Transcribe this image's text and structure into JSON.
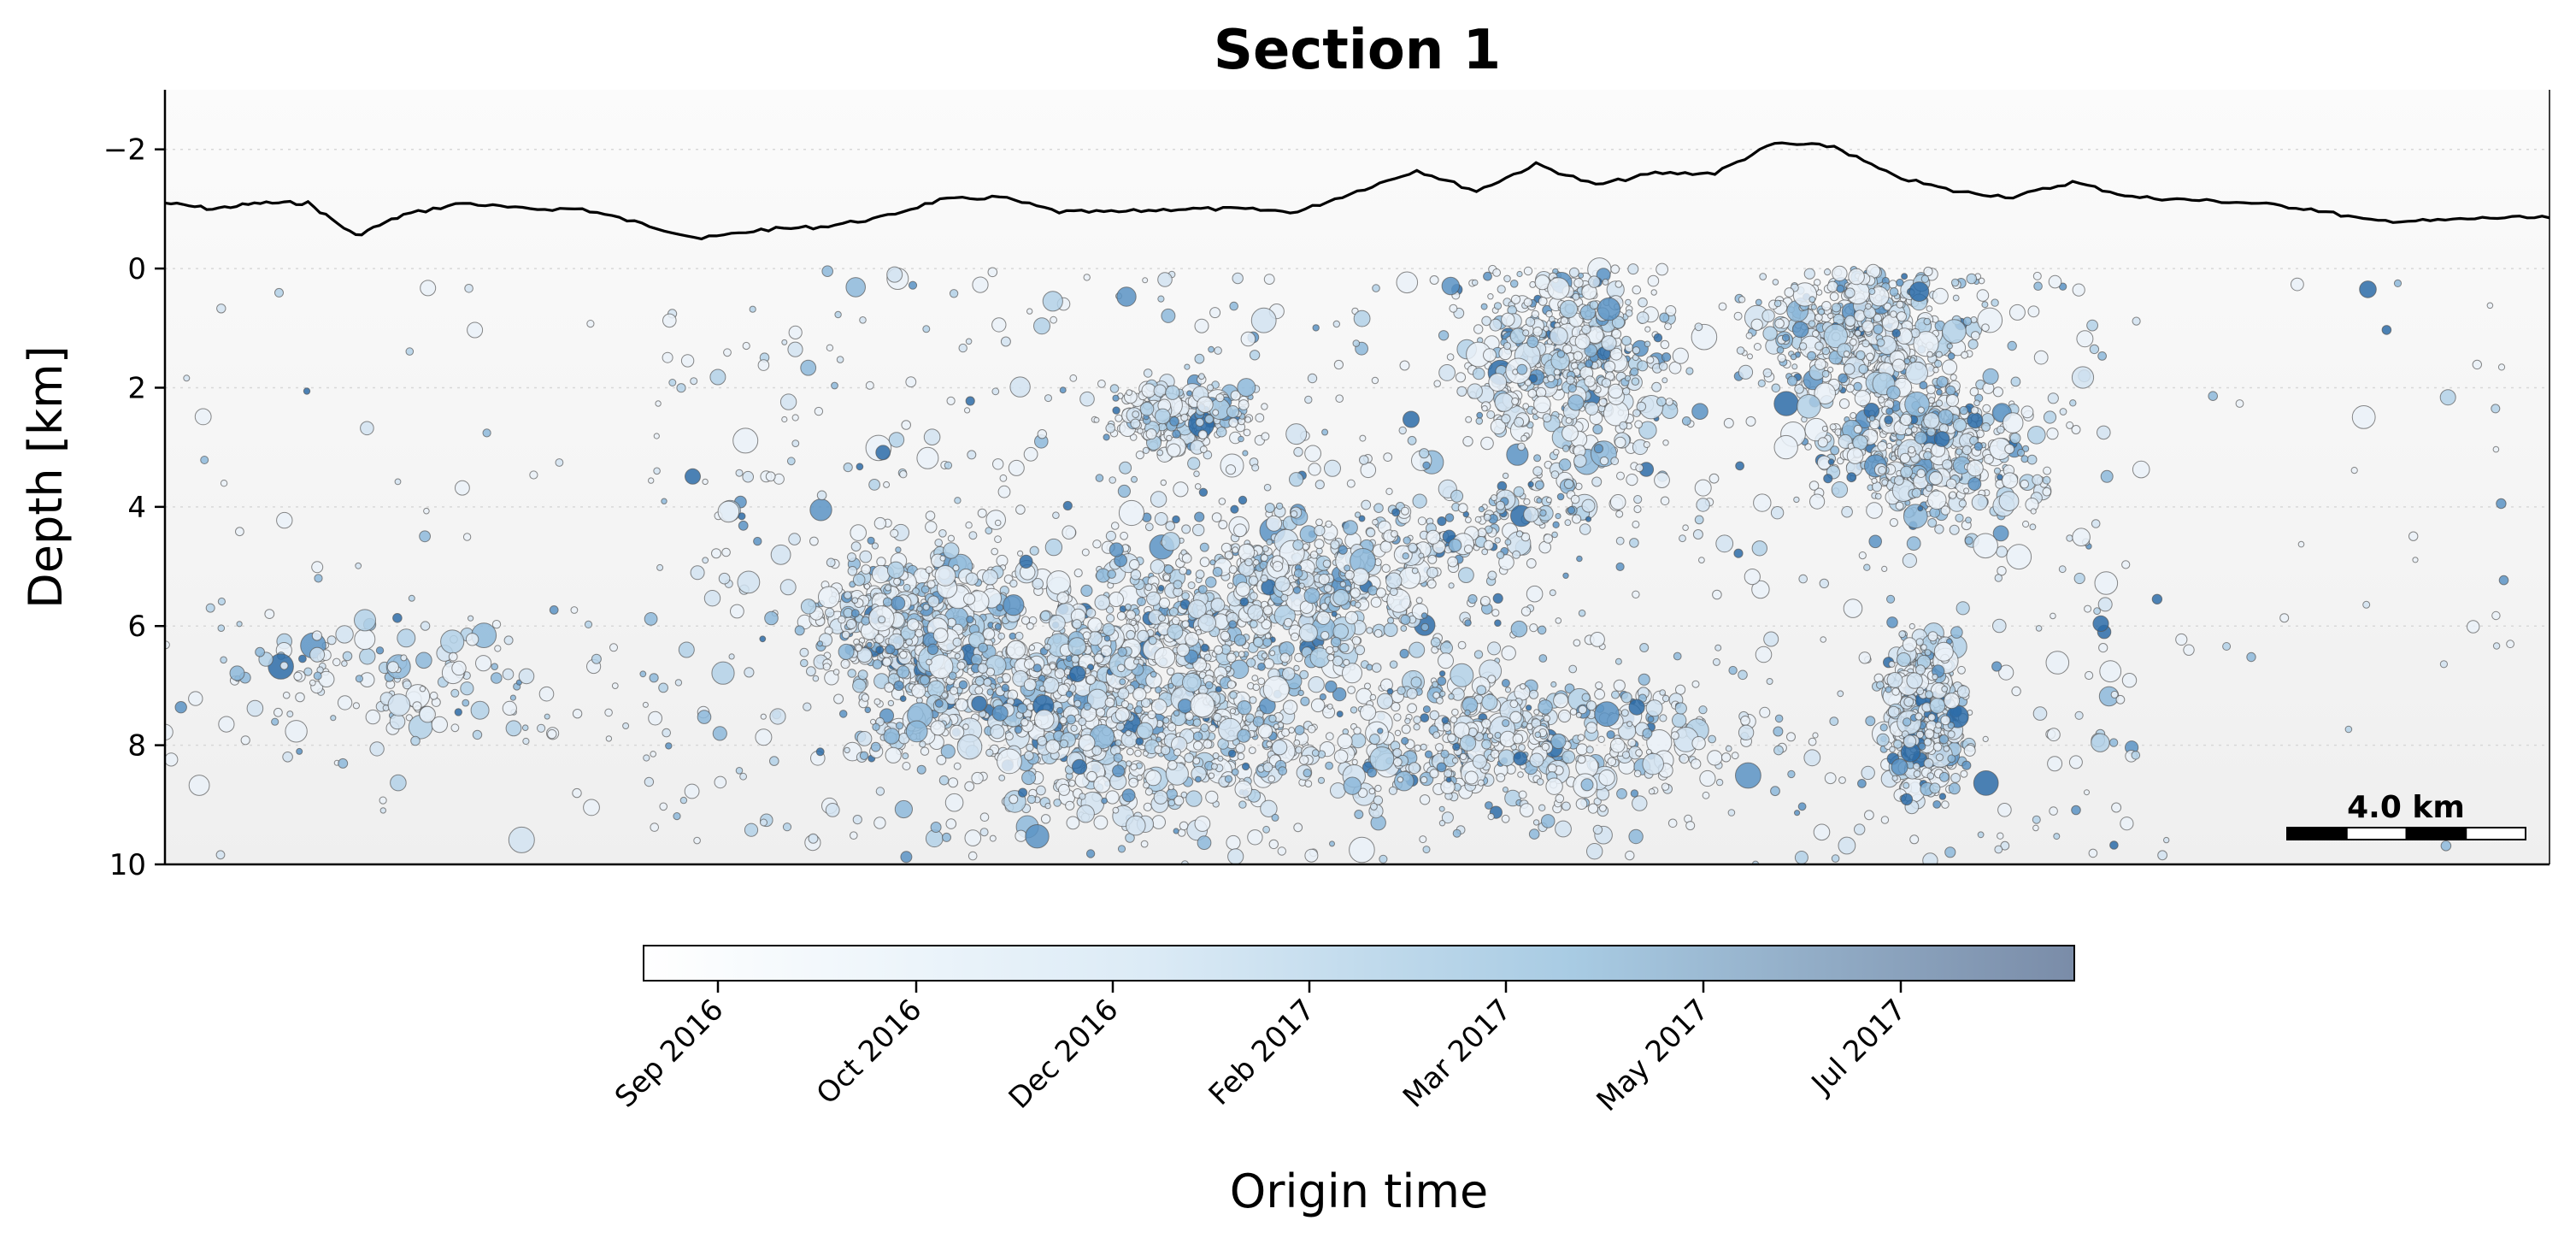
{
  "chart_data": {
    "type": "scatter",
    "title": "Section 1",
    "ylabel": "Depth [km]",
    "ylim": [
      -3.0,
      10
    ],
    "y_inverted": true,
    "y_ticks": [
      -2,
      0,
      2,
      4,
      6,
      8,
      10
    ],
    "y_tick_labels": [
      "−2",
      "0",
      "2",
      "4",
      "6",
      "8",
      "10"
    ],
    "x_axis_visible": false,
    "xlim_km": [
      0,
      40
    ],
    "grid": "horizontal dotted",
    "topography_line": {
      "x_km": [
        0,
        0.8,
        1.6,
        2.4,
        3.2,
        4.0,
        5.0,
        6.0,
        7.0,
        8.0,
        9.0,
        10.0,
        11.0,
        12.0,
        13.0,
        14.0,
        15.0,
        16.0,
        17.0,
        18.0,
        19.0,
        20.0,
        21.0,
        22.0,
        23.0,
        24.0,
        25.0,
        26.0,
        27.0,
        28.0,
        29.0,
        30.0,
        31.0,
        32.0,
        33.0,
        34.0,
        35.0,
        36.0,
        37.0,
        38.0,
        39.0,
        40.0
      ],
      "elevation_km": [
        -1.1,
        -1.0,
        -1.1,
        -1.1,
        -0.55,
        -0.9,
        -1.1,
        -1.0,
        -1.0,
        -0.75,
        -0.5,
        -0.65,
        -0.7,
        -0.85,
        -1.15,
        -1.2,
        -0.95,
        -0.95,
        -1.0,
        -1.0,
        -0.95,
        -1.3,
        -1.65,
        -1.3,
        -1.75,
        -1.4,
        -1.6,
        -1.6,
        -2.1,
        -2.05,
        -1.55,
        -1.3,
        -1.2,
        -1.45,
        -1.2,
        -1.15,
        -1.1,
        -1.0,
        -0.8,
        -0.8,
        -0.85,
        -0.85
      ]
    },
    "events": {
      "count_rendered": 6000,
      "clusters": [
        {
          "x_km": [
            1,
            7
          ],
          "depth_km": [
            6,
            8
          ],
          "density": "low"
        },
        {
          "x_km": [
            11,
            14
          ],
          "depth_km": [
            5,
            7
          ],
          "density": "high"
        },
        {
          "x_km": [
            13,
            19
          ],
          "depth_km": [
            6,
            9
          ],
          "density": "very high"
        },
        {
          "x_km": [
            15,
            22
          ],
          "depth_km": [
            4,
            7
          ],
          "density": "high"
        },
        {
          "x_km": [
            16,
            18
          ],
          "depth_km": [
            2,
            3
          ],
          "density": "medium"
        },
        {
          "x_km": [
            22,
            25
          ],
          "depth_km": [
            0,
            3
          ],
          "density": "high"
        },
        {
          "x_km": [
            19,
            26
          ],
          "depth_km": [
            7,
            9
          ],
          "density": "high"
        },
        {
          "x_km": [
            27,
            30
          ],
          "depth_km": [
            0,
            2
          ],
          "density": "high"
        },
        {
          "x_km": [
            28,
            31
          ],
          "depth_km": [
            2,
            4
          ],
          "density": "high"
        },
        {
          "x_km": [
            29,
            30
          ],
          "depth_km": [
            6.5,
            8.5
          ],
          "density": "very high"
        }
      ]
    },
    "colorbar": {
      "label": "Origin time",
      "tick_labels": [
        "Sep 2016",
        "Oct 2016",
        "Dec 2016",
        "Feb 2017",
        "Mar 2017",
        "May 2017",
        "Jul 2017"
      ],
      "colors": [
        "#ffffff",
        "#dcebf6",
        "#a8cbe3",
        "#7a8ca8"
      ]
    },
    "scalebar": {
      "label": "4.0 km",
      "length_km": 4.0,
      "segments": 4
    },
    "colors": {
      "marker_edge": "#555555",
      "topography": "#000000",
      "background_top": "#fbfbfb",
      "background_bottom": "#f0f0f0"
    }
  }
}
